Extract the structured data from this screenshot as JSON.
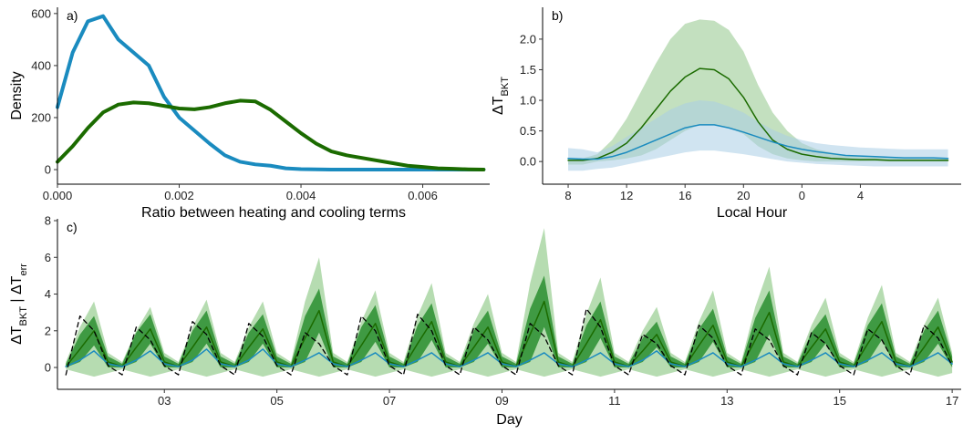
{
  "chart_data": [
    {
      "type": "line",
      "label": "a)",
      "xlabel": "Ratio between heating and cooling terms",
      "ylabel": [
        "Density"
      ],
      "x": [
        0,
        0.00025,
        0.0005,
        0.00075,
        0.001,
        0.00125,
        0.0015,
        0.00175,
        0.002,
        0.00225,
        0.0025,
        0.00275,
        0.003,
        0.00325,
        0.0035,
        0.00375,
        0.004,
        0.00425,
        0.0045,
        0.00475,
        0.005,
        0.00525,
        0.0055,
        0.00575,
        0.006,
        0.00625,
        0.0065,
        0.00675,
        0.007
      ],
      "series": [
        {
          "color": "#1a8bbf",
          "width": 4,
          "values": [
            240,
            450,
            570,
            590,
            500,
            450,
            400,
            280,
            200,
            150,
            100,
            55,
            30,
            20,
            15,
            5,
            2,
            1,
            0,
            0,
            0,
            0,
            0,
            0,
            0,
            0,
            0,
            0,
            0
          ]
        },
        {
          "color": "#1b6b00",
          "width": 4,
          "values": [
            30,
            90,
            160,
            220,
            250,
            258,
            255,
            245,
            235,
            232,
            240,
            255,
            265,
            262,
            230,
            185,
            140,
            100,
            70,
            55,
            45,
            35,
            25,
            15,
            10,
            5,
            3,
            1,
            0
          ]
        }
      ],
      "xlim": [
        0,
        0.0071
      ],
      "ylim": [
        -56,
        624
      ],
      "xticks": [
        {
          "value": 0,
          "label": "0.000"
        },
        {
          "value": 0.002,
          "label": "0.002"
        },
        {
          "value": 0.004,
          "label": "0.004"
        },
        {
          "value": 0.006,
          "label": "0.006"
        }
      ],
      "yticks": [
        0,
        200,
        400,
        600
      ]
    },
    {
      "type": "line",
      "label": "b)",
      "xlabel": "Local Hour",
      "ylabel": [
        "ΔT",
        "BKT"
      ],
      "x": [
        8,
        9,
        10,
        11,
        12,
        13,
        14,
        15,
        16,
        17,
        18,
        19,
        20,
        21,
        22,
        23,
        24,
        25,
        26,
        27,
        28,
        29,
        30,
        31,
        32,
        33,
        34
      ],
      "bands": [
        {
          "color": "#a9d3a4",
          "opacity": 0.7,
          "upper": [
            0.05,
            0.05,
            0.12,
            0.35,
            0.7,
            1.15,
            1.6,
            2.0,
            2.25,
            2.32,
            2.3,
            2.15,
            1.8,
            1.25,
            0.8,
            0.5,
            0.3,
            0.2,
            0.15,
            0.1,
            0.08,
            0.07,
            0.06,
            0.05,
            0.05,
            0.05,
            0.05
          ],
          "lower": [
            -0.05,
            -0.05,
            0,
            0.02,
            0.05,
            0.1,
            0.2,
            0.35,
            0.5,
            0.6,
            0.6,
            0.55,
            0.45,
            0.25,
            0.12,
            0.05,
            0.02,
            0,
            0,
            0,
            0,
            0,
            0,
            0,
            0,
            0,
            0
          ]
        },
        {
          "color": "#aacde6",
          "opacity": 0.55,
          "upper": [
            0.22,
            0.2,
            0.15,
            0.25,
            0.4,
            0.55,
            0.7,
            0.85,
            0.95,
            1.0,
            0.98,
            0.9,
            0.8,
            0.65,
            0.52,
            0.42,
            0.35,
            0.3,
            0.27,
            0.25,
            0.23,
            0.22,
            0.21,
            0.2,
            0.2,
            0.2,
            0.2
          ],
          "lower": [
            -0.15,
            -0.15,
            -0.12,
            -0.1,
            -0.05,
            0,
            0.05,
            0.1,
            0.15,
            0.18,
            0.18,
            0.15,
            0.12,
            0.08,
            0.04,
            0,
            -0.02,
            -0.04,
            -0.05,
            -0.06,
            -0.07,
            -0.08,
            -0.08,
            -0.08,
            -0.08,
            -0.08,
            -0.08
          ]
        }
      ],
      "series": [
        {
          "color": "#1b6b00",
          "width": 1.5,
          "values": [
            0.02,
            0.02,
            0.05,
            0.15,
            0.3,
            0.55,
            0.85,
            1.15,
            1.38,
            1.52,
            1.5,
            1.35,
            1.05,
            0.65,
            0.35,
            0.2,
            0.12,
            0.08,
            0.05,
            0.04,
            0.03,
            0.03,
            0.02,
            0.02,
            0.02,
            0.02,
            0.02
          ]
        },
        {
          "color": "#1a8bbf",
          "width": 1.5,
          "values": [
            0.05,
            0.04,
            0.04,
            0.08,
            0.15,
            0.25,
            0.35,
            0.45,
            0.55,
            0.6,
            0.6,
            0.55,
            0.48,
            0.4,
            0.32,
            0.25,
            0.2,
            0.16,
            0.13,
            0.1,
            0.09,
            0.08,
            0.07,
            0.06,
            0.06,
            0.06,
            0.05
          ]
        }
      ],
      "xlim": [
        6.25,
        34.9
      ],
      "ylim": [
        -0.37,
        2.52
      ],
      "xticks": [
        8,
        12,
        16,
        20,
        {
          "value": 24,
          "label": "0"
        },
        {
          "value": 28,
          "label": "4"
        }
      ],
      "yticks": [
        {
          "value": 0,
          "label": "0.0"
        },
        {
          "value": 0.5,
          "label": "0.5"
        },
        {
          "value": 1,
          "label": "1.0"
        },
        {
          "value": 1.5,
          "label": "1.5"
        },
        {
          "value": 2,
          "label": "2.0"
        }
      ]
    },
    {
      "type": "line",
      "label": "c)",
      "xlabel": "Day",
      "ylabel": [
        "ΔT",
        "BKT",
        " | ΔT",
        "err"
      ],
      "x": [
        1.25,
        1.5,
        1.75,
        2,
        2.25,
        2.5,
        2.75,
        3,
        3.25,
        3.5,
        3.75,
        4,
        4.25,
        4.5,
        4.75,
        5,
        5.25,
        5.5,
        5.75,
        6,
        6.25,
        6.5,
        6.75,
        7,
        7.25,
        7.5,
        7.75,
        8,
        8.25,
        8.5,
        8.75,
        9,
        9.25,
        9.5,
        9.75,
        10,
        10.25,
        10.5,
        10.75,
        11,
        11.25,
        11.5,
        11.75,
        12,
        12.25,
        12.5,
        12.75,
        13,
        13.25,
        13.5,
        13.75,
        14,
        14.25,
        14.5,
        14.75,
        15,
        15.25,
        15.5,
        15.75,
        16,
        16.25,
        16.5,
        16.75,
        17
      ],
      "bands": [
        {
          "color": "#b6dcb1",
          "opacity": 1,
          "upper": [
            0.3,
            2.2,
            3.6,
            0.8,
            0.3,
            2.0,
            3.3,
            0.8,
            0.3,
            2.2,
            3.7,
            0.8,
            0.3,
            2.2,
            3.6,
            0.8,
            0.3,
            3.6,
            6.0,
            0.8,
            0.3,
            2.5,
            4.2,
            0.8,
            0.3,
            2.8,
            4.6,
            0.8,
            0.3,
            2.4,
            4.0,
            0.8,
            0.3,
            4.6,
            7.6,
            0.8,
            0.3,
            2.9,
            4.9,
            0.8,
            0.3,
            2.0,
            3.3,
            0.8,
            0.3,
            2.5,
            4.2,
            0.8,
            0.3,
            3.3,
            5.5,
            0.8,
            0.3,
            2.3,
            3.8,
            0.8,
            0.3,
            2.7,
            4.5,
            0.8,
            0.3,
            2.3,
            3.8,
            0.8
          ],
          "lower": [
            -0.1,
            -0.3,
            -0.5,
            -0.3,
            -0.1,
            -0.3,
            -0.5,
            -0.3,
            -0.1,
            -0.3,
            -0.5,
            -0.3,
            -0.1,
            -0.3,
            -0.5,
            -0.3,
            -0.1,
            -0.3,
            -0.5,
            -0.3,
            -0.1,
            -0.3,
            -0.5,
            -0.3,
            -0.1,
            -0.3,
            -0.5,
            -0.3,
            -0.1,
            -0.3,
            -0.5,
            -0.3,
            -0.1,
            -0.3,
            -0.5,
            -0.3,
            -0.1,
            -0.3,
            -0.5,
            -0.3,
            -0.1,
            -0.3,
            -0.5,
            -0.3,
            -0.1,
            -0.3,
            -0.5,
            -0.3,
            -0.1,
            -0.3,
            -0.5,
            -0.3,
            -0.1,
            -0.3,
            -0.5,
            -0.3,
            -0.1,
            -0.3,
            -0.5,
            -0.3,
            -0.1,
            -0.3,
            -0.5,
            -0.3
          ]
        },
        {
          "color": "#3f9a43",
          "opacity": 1,
          "upper": [
            0.2,
            1.8,
            2.8,
            0.6,
            0.2,
            1.9,
            2.9,
            0.6,
            0.2,
            2.0,
            3.1,
            0.6,
            0.2,
            1.9,
            2.9,
            0.6,
            0.2,
            2.8,
            4.3,
            0.6,
            0.2,
            2.2,
            3.4,
            0.6,
            0.2,
            2.3,
            3.5,
            0.6,
            0.2,
            2.0,
            3.1,
            0.6,
            0.2,
            3.2,
            5.0,
            0.6,
            0.2,
            2.3,
            3.6,
            0.6,
            0.2,
            1.6,
            2.5,
            0.6,
            0.2,
            2.1,
            3.2,
            0.6,
            0.2,
            2.7,
            4.2,
            0.6,
            0.2,
            1.9,
            2.9,
            0.6,
            0.2,
            2.3,
            3.5,
            0.6,
            0.2,
            2.0,
            3.1,
            0.6
          ],
          "lower": [
            0,
            0.3,
            1.2,
            0,
            0,
            0.3,
            1.3,
            0,
            0,
            0.3,
            1.3,
            0,
            0,
            0.3,
            1.3,
            0,
            0,
            0.3,
            1.9,
            0,
            0,
            0.3,
            1.4,
            0,
            0,
            0.3,
            1.5,
            0,
            0,
            0.3,
            1.3,
            0,
            0,
            0.3,
            2.2,
            0,
            0,
            0.3,
            1.6,
            0,
            0,
            0.3,
            1.1,
            0,
            0,
            0.3,
            1.4,
            0,
            0,
            0.3,
            1.8,
            0,
            0,
            0.3,
            1.3,
            0,
            0,
            0.3,
            1.5,
            0,
            0,
            0.3,
            1.3,
            0
          ]
        }
      ],
      "series": [
        {
          "color": "#1b6b00",
          "width": 1.5,
          "values": [
            0.05,
            1.0,
            2.0,
            0.3,
            0.05,
            1.1,
            2.1,
            0.3,
            0.05,
            1.1,
            2.2,
            0.3,
            0.05,
            1.1,
            2.1,
            0.3,
            0.05,
            1.6,
            3.1,
            0.3,
            0.05,
            1.2,
            2.4,
            0.3,
            0.05,
            1.3,
            2.5,
            0.3,
            0.05,
            1.1,
            2.2,
            0.3,
            0.05,
            1.8,
            3.6,
            0.3,
            0.05,
            1.3,
            2.6,
            0.3,
            0.05,
            0.9,
            1.8,
            0.3,
            0.05,
            1.2,
            2.3,
            0.3,
            0.05,
            1.5,
            3.0,
            0.3,
            0.05,
            1.1,
            2.1,
            0.3,
            0.05,
            1.3,
            2.5,
            0.3,
            0.05,
            1.1,
            2.2,
            0.3
          ]
        },
        {
          "color": "#1a8bbf",
          "width": 1.5,
          "values": [
            0.05,
            0.4,
            0.9,
            0.2,
            0.05,
            0.4,
            0.9,
            0.2,
            0.05,
            0.4,
            1.0,
            0.2,
            0.05,
            0.4,
            1.0,
            0.2,
            0.05,
            0.4,
            0.8,
            0.2,
            0.05,
            0.4,
            0.8,
            0.2,
            0.05,
            0.4,
            0.8,
            0.2,
            0.05,
            0.4,
            0.8,
            0.2,
            0.05,
            0.4,
            0.8,
            0.2,
            0.05,
            0.4,
            0.8,
            0.2,
            0.05,
            0.4,
            0.9,
            0.2,
            0.05,
            0.4,
            0.8,
            0.2,
            0.05,
            0.4,
            0.8,
            0.2,
            0.05,
            0.4,
            0.8,
            0.2,
            0.05,
            0.4,
            0.8,
            0.2,
            0.05,
            0.4,
            0.8,
            0.2
          ]
        },
        {
          "color": "#000000",
          "width": 1.3,
          "dash": true,
          "values": [
            -0.4,
            2.8,
            2.0,
            0.1,
            -0.4,
            2.2,
            1.5,
            0.1,
            -0.4,
            2.5,
            1.8,
            0.1,
            -0.4,
            2.4,
            1.7,
            0.1,
            -0.4,
            1.9,
            1.3,
            0.1,
            -0.4,
            2.8,
            2.0,
            0.1,
            -0.4,
            2.9,
            2.0,
            0.1,
            -0.4,
            2.2,
            1.5,
            0.1,
            -0.4,
            2.4,
            1.7,
            0.1,
            -0.4,
            3.2,
            2.2,
            0.1,
            -0.4,
            1.8,
            1.3,
            0.1,
            -0.4,
            2.3,
            1.6,
            0.1,
            -0.4,
            2.1,
            1.5,
            0.1,
            -0.4,
            1.9,
            1.3,
            0.1,
            -0.4,
            2.1,
            1.5,
            0.1,
            -0.4,
            2.3,
            1.6,
            0.1
          ]
        }
      ],
      "xlim": [
        1.1,
        17.16
      ],
      "ylim": [
        -1.19,
        8.1
      ],
      "xticks": [
        {
          "value": 3,
          "label": "03"
        },
        {
          "value": 5,
          "label": "05"
        },
        {
          "value": 7,
          "label": "07"
        },
        {
          "value": 9,
          "label": "09"
        },
        {
          "value": 11,
          "label": "11"
        },
        {
          "value": 13,
          "label": "13"
        },
        {
          "value": 15,
          "label": "15"
        },
        {
          "value": 17,
          "label": "17"
        }
      ],
      "yticks": [
        0,
        2,
        4,
        6,
        8
      ]
    }
  ]
}
